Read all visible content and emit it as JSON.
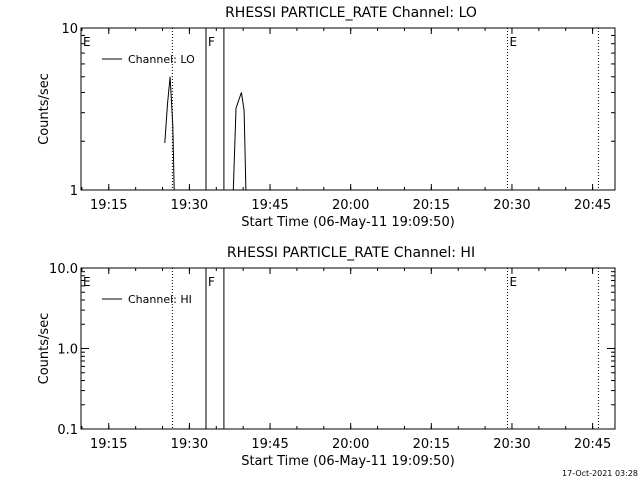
{
  "footer": {
    "timestamp": "17-Oct-2021 03:28"
  },
  "chart_data": [
    {
      "type": "line",
      "title": "RHESSI PARTICLE_RATE Channel: LO",
      "xlabel": "Start Time (06-May-11 19:09:50)",
      "ylabel": "Counts/sec",
      "yscale": "log",
      "xlim": [
        "19:09:50",
        "20:49:10"
      ],
      "ylim": [
        1,
        10
      ],
      "x_ticks": [
        "19:15",
        "19:30",
        "19:45",
        "20:00",
        "20:15",
        "20:30",
        "20:45"
      ],
      "y_ticks": [
        "1",
        "10"
      ],
      "legend": {
        "entries": [
          "Channel: LO"
        ],
        "placement": "top-left"
      },
      "series": [
        {
          "name": "Channel: LO",
          "x": [
            "19:25:25",
            "19:25:55",
            "19:26:25",
            "19:26:55",
            "19:27:10",
            null,
            "19:38:10",
            "19:38:40",
            "19:39:40",
            "19:40:10",
            "19:40:30"
          ],
          "values": [
            1.95,
            3.4,
            5.0,
            2.5,
            1.0,
            null,
            1.0,
            3.2,
            4.0,
            3.1,
            1.0
          ]
        }
      ],
      "markers": [
        {
          "label": "E",
          "time": "19:09:50",
          "style": "dotted"
        },
        {
          "label": "",
          "time": "19:26:50",
          "style": "dotted"
        },
        {
          "label": "F",
          "time": "19:33:05",
          "style": "solid"
        },
        {
          "label": "",
          "time": "19:36:25",
          "style": "solid"
        },
        {
          "label": "E",
          "time": "20:29:10",
          "style": "dotted"
        },
        {
          "label": "",
          "time": "20:46:05",
          "style": "dotted"
        }
      ]
    },
    {
      "type": "line",
      "title": "RHESSI PARTICLE_RATE Channel: HI",
      "xlabel": "Start Time (06-May-11 19:09:50)",
      "ylabel": "Counts/sec",
      "yscale": "log",
      "xlim": [
        "19:09:50",
        "20:49:10"
      ],
      "ylim": [
        0.1,
        10
      ],
      "x_ticks": [
        "19:15",
        "19:30",
        "19:45",
        "20:00",
        "20:15",
        "20:30",
        "20:45"
      ],
      "y_ticks": [
        "0.1",
        "1.0",
        "10.0"
      ],
      "legend": {
        "entries": [
          "Channel: HI"
        ],
        "placement": "top-left"
      },
      "series": [
        {
          "name": "Channel: HI",
          "x": [],
          "values": []
        }
      ],
      "markers": [
        {
          "label": "E",
          "time": "19:09:50",
          "style": "dotted"
        },
        {
          "label": "",
          "time": "19:26:50",
          "style": "dotted"
        },
        {
          "label": "F",
          "time": "19:33:05",
          "style": "solid"
        },
        {
          "label": "",
          "time": "19:36:25",
          "style": "solid"
        },
        {
          "label": "E",
          "time": "20:29:10",
          "style": "dotted"
        },
        {
          "label": "",
          "time": "20:46:05",
          "style": "dotted"
        }
      ]
    }
  ]
}
